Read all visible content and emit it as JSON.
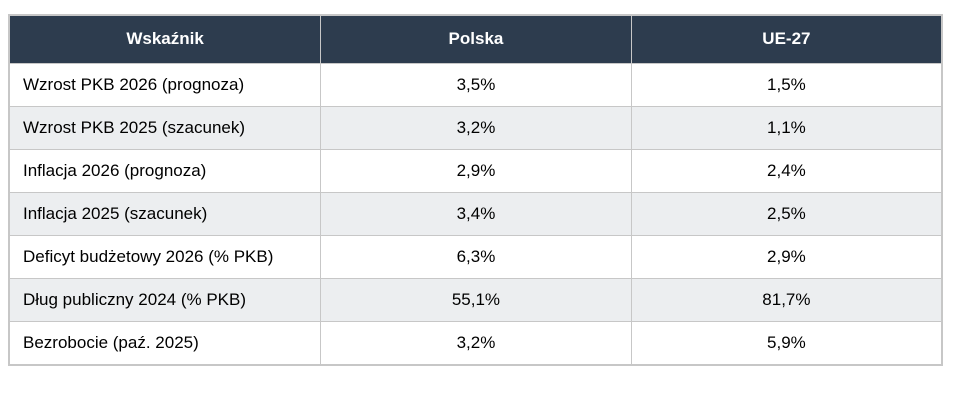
{
  "table": {
    "headers": [
      "Wskaźnik",
      "Polska",
      "UE-27"
    ],
    "rows": [
      {
        "indicator": "Wzrost PKB 2026 (prognoza)",
        "polska": "3,5%",
        "ue27": "1,5%"
      },
      {
        "indicator": "Wzrost PKB 2025 (szacunek)",
        "polska": "3,2%",
        "ue27": "1,1%"
      },
      {
        "indicator": "Inflacja 2026 (prognoza)",
        "polska": "2,9%",
        "ue27": "2,4%"
      },
      {
        "indicator": "Inflacja 2025 (szacunek)",
        "polska": "3,4%",
        "ue27": "2,5%"
      },
      {
        "indicator": "Deficyt budżetowy 2026 (% PKB)",
        "polska": "6,3%",
        "ue27": "2,9%"
      },
      {
        "indicator": "Dług publiczny 2024 (% PKB)",
        "polska": "55,1%",
        "ue27": "81,7%"
      },
      {
        "indicator": "Bezrobocie (paź. 2025)",
        "polska": "3,2%",
        "ue27": "5,9%"
      }
    ]
  },
  "colors": {
    "header_bg": "#2d3c4e",
    "header_fg": "#ffffff",
    "zebra_bg": "#eceef0",
    "border": "#c7c7c7",
    "text": "#000000",
    "page_bg": "#ffffff"
  },
  "chart_data": {
    "type": "table",
    "title": "",
    "columns": [
      "Wskaźnik",
      "Polska",
      "UE-27"
    ],
    "categories": [
      "Wzrost PKB 2026 (prognoza)",
      "Wzrost PKB 2025 (szacunek)",
      "Inflacja 2026 (prognoza)",
      "Inflacja 2025 (szacunek)",
      "Deficyt budżetowy 2026 (% PKB)",
      "Dług publiczny 2024 (% PKB)",
      "Bezrobocie (paź. 2025)"
    ],
    "series": [
      {
        "name": "Polska",
        "values": [
          3.5,
          3.2,
          2.9,
          3.4,
          6.3,
          55.1,
          3.2
        ],
        "unit": "%"
      },
      {
        "name": "UE-27",
        "values": [
          1.5,
          1.1,
          2.4,
          2.5,
          2.9,
          81.7,
          5.9
        ],
        "unit": "%"
      }
    ]
  }
}
